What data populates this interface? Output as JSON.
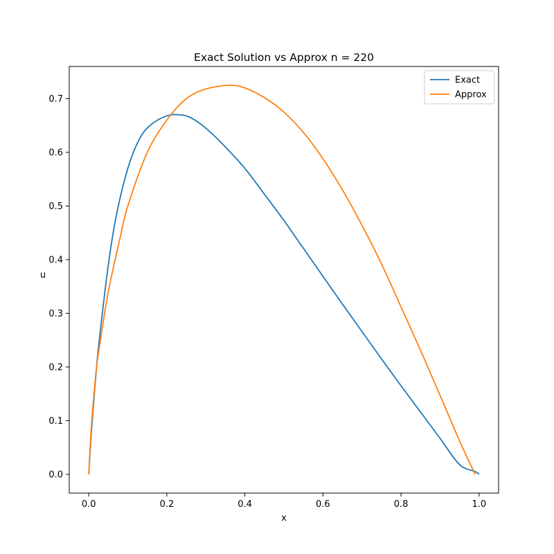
{
  "chart_data": {
    "type": "line",
    "title": "Exact Solution vs Approx n = 220",
    "xlabel": "x",
    "ylabel": "u",
    "xlim": [
      -0.05,
      1.05
    ],
    "ylim": [
      -0.035,
      0.76
    ],
    "xticks": [
      0.0,
      0.2,
      0.4,
      0.6,
      0.8,
      1.0
    ],
    "xtick_labels": [
      "0.0",
      "0.2",
      "0.4",
      "0.6",
      "0.8",
      "1.0"
    ],
    "yticks": [
      0.0,
      0.1,
      0.2,
      0.3,
      0.4,
      0.5,
      0.6,
      0.7
    ],
    "ytick_labels": [
      "0.0",
      "0.1",
      "0.2",
      "0.3",
      "0.4",
      "0.5",
      "0.6",
      "0.7"
    ],
    "grid": false,
    "legend": "top-right",
    "series": [
      {
        "name": "Exact",
        "color": "#1f77b4",
        "x": [
          0.0,
          0.005,
          0.01,
          0.02,
          0.03,
          0.05,
          0.07,
          0.1,
          0.13,
          0.16,
          0.2,
          0.23,
          0.26,
          0.3,
          0.35,
          0.4,
          0.45,
          0.5,
          0.55,
          0.6,
          0.65,
          0.7,
          0.75,
          0.8,
          0.85,
          0.9,
          0.95,
          0.99,
          1.0
        ],
        "y": [
          0.0,
          0.06,
          0.11,
          0.2,
          0.27,
          0.39,
          0.48,
          0.57,
          0.625,
          0.652,
          0.668,
          0.67,
          0.665,
          0.645,
          0.61,
          0.57,
          0.522,
          0.473,
          0.421,
          0.369,
          0.317,
          0.266,
          0.215,
          0.165,
          0.116,
          0.067,
          0.018,
          0.005,
          0.0
        ]
      },
      {
        "name": "Approx",
        "color": "#ff7f0e",
        "x": [
          0.0,
          0.005,
          0.01,
          0.02,
          0.03,
          0.05,
          0.08,
          0.1,
          0.15,
          0.2,
          0.25,
          0.3,
          0.36,
          0.4,
          0.45,
          0.5,
          0.55,
          0.6,
          0.65,
          0.7,
          0.75,
          0.8,
          0.85,
          0.9,
          0.95,
          0.98,
          0.99
        ],
        "y": [
          0.0,
          0.07,
          0.12,
          0.2,
          0.25,
          0.34,
          0.44,
          0.5,
          0.6,
          0.66,
          0.7,
          0.718,
          0.725,
          0.72,
          0.702,
          0.675,
          0.637,
          0.588,
          0.53,
          0.464,
          0.392,
          0.312,
          0.231,
          0.147,
          0.062,
          0.015,
          0.0
        ]
      }
    ]
  }
}
